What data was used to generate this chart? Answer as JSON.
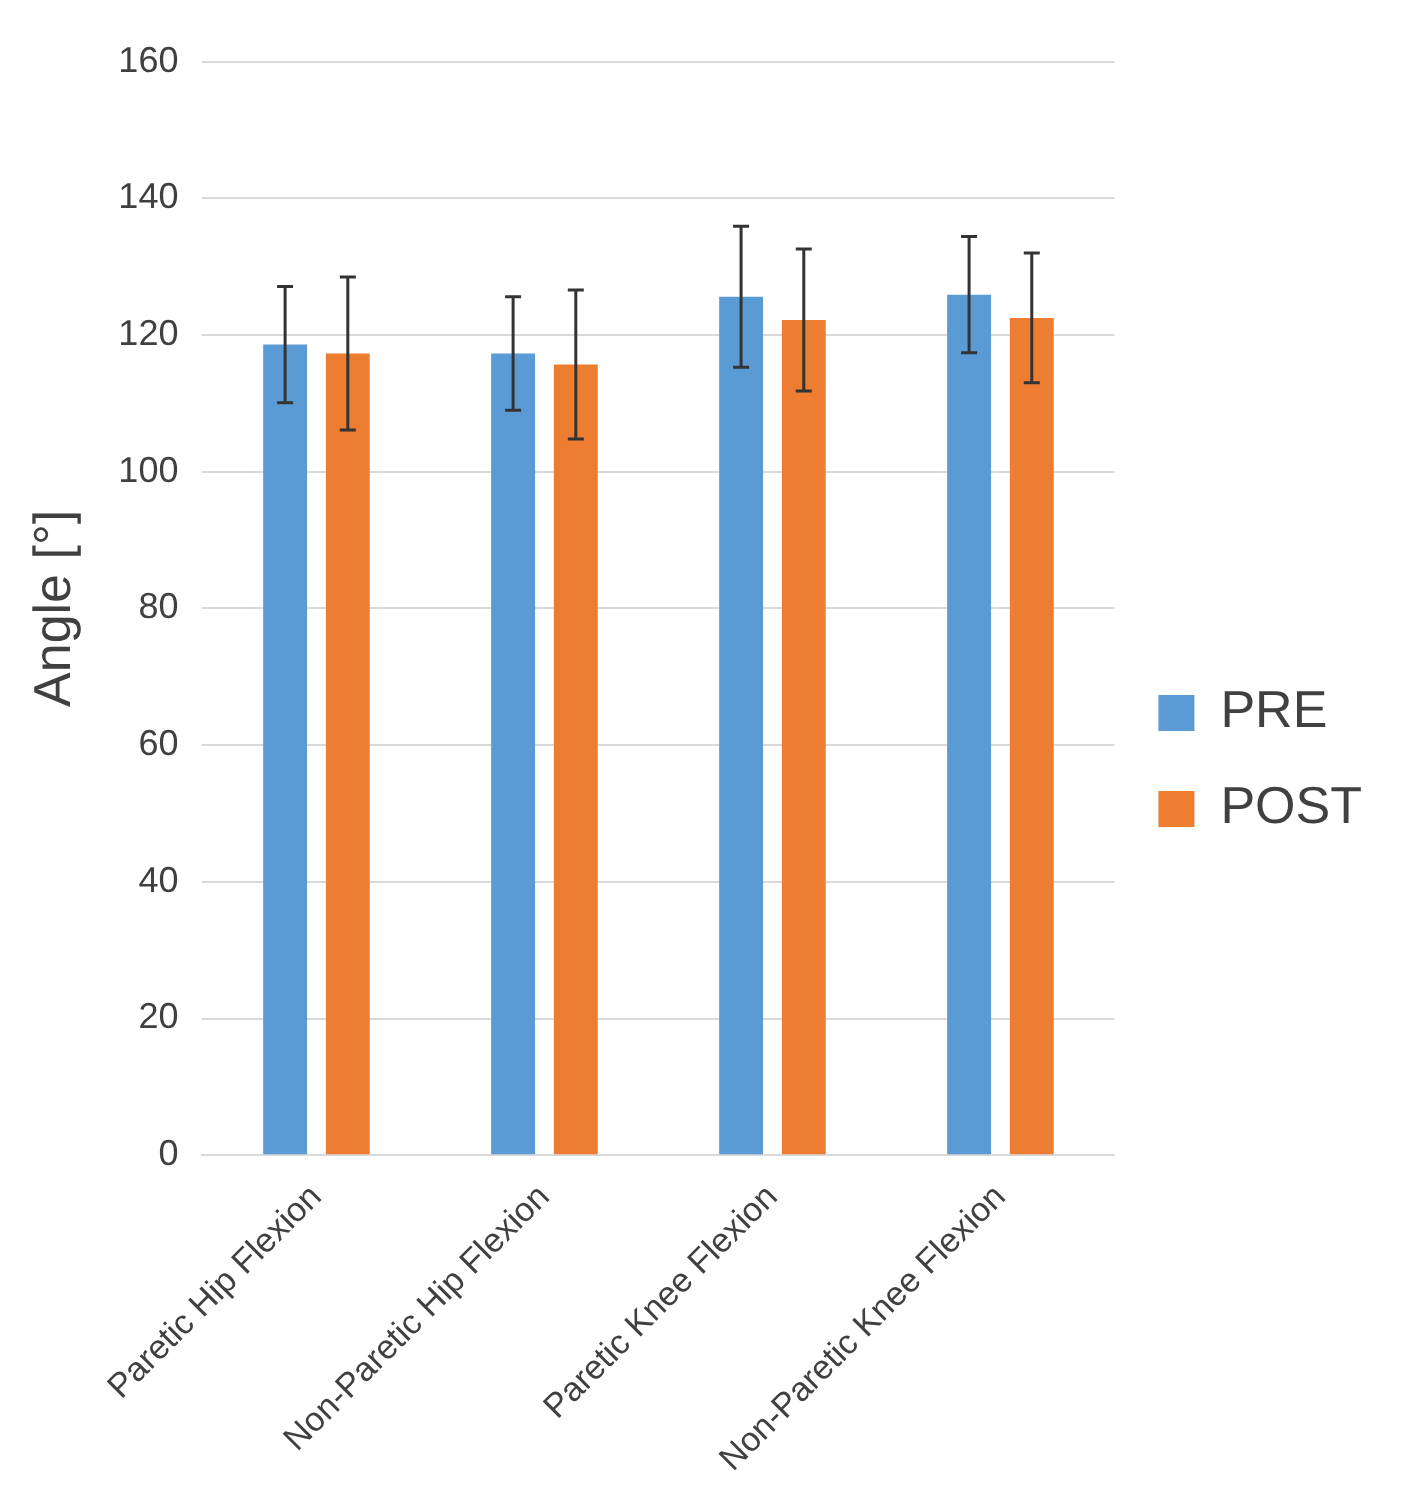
{
  "chart_data": {
    "type": "bar",
    "ylabel": "Angle [°]",
    "categories": [
      "Paretic Hip Flexion",
      "Non-Paretic Hip Flexion",
      "Paretic Knee Flexion",
      "Non-Paretic Knee Flexion"
    ],
    "series": [
      {
        "name": "PRE",
        "color": "#5b9bd5",
        "values": [
          118.6,
          117.3,
          125.6,
          125.9
        ],
        "errors": [
          8.5,
          8.3,
          10.3,
          8.5
        ]
      },
      {
        "name": "POST",
        "color": "#ed7d31",
        "values": [
          117.3,
          115.7,
          122.2,
          122.5
        ],
        "errors": [
          11.2,
          10.9,
          10.4,
          9.5
        ]
      }
    ],
    "ylim": [
      0,
      160
    ],
    "yticks": [
      0,
      20,
      40,
      60,
      80,
      100,
      120,
      140,
      160
    ],
    "grid": "y",
    "legend": "right"
  }
}
